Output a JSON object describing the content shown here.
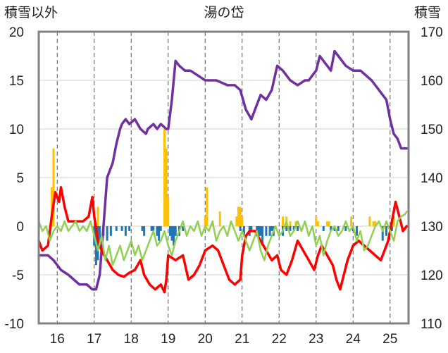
{
  "chart_data": {
    "type": "line",
    "title": "湯の岱",
    "ylabel_left": "積雪以外",
    "ylabel_right": "積雪",
    "ylim_left": [
      -10,
      20
    ],
    "yticks_left": [
      "20",
      "15",
      "10",
      "5",
      "0",
      "-5",
      "-10"
    ],
    "ylim_right": [
      110,
      170
    ],
    "yticks_right": [
      "170",
      "160",
      "150",
      "140",
      "130",
      "120",
      "110"
    ],
    "xlim": [
      15.5,
      25.5
    ],
    "x_tick_labels": [
      "16",
      "17",
      "18",
      "19",
      "20",
      "21",
      "22",
      "23",
      "24",
      "25"
    ],
    "grid": "dashed vertical at each day",
    "series": [
      {
        "axis": "right",
        "color": "#7030A0",
        "kind": "line",
        "x": [
          15.5,
          15.75,
          15.9,
          16.1,
          16.3,
          16.6,
          16.8,
          16.95,
          17.05,
          17.15,
          17.25,
          17.35,
          17.5,
          17.6,
          17.7,
          17.75,
          17.85,
          17.95,
          18.1,
          18.25,
          18.4,
          18.45,
          18.6,
          18.7,
          18.8,
          18.95,
          19.0,
          19.1,
          19.2,
          19.3,
          19.45,
          19.6,
          19.8,
          20.0,
          20.3,
          20.6,
          20.8,
          20.95,
          21.1,
          21.25,
          21.4,
          21.5,
          21.65,
          21.8,
          21.95,
          22.1,
          22.3,
          22.5,
          22.7,
          22.8,
          22.9,
          23.0,
          23.1,
          23.2,
          23.3,
          23.4,
          23.5,
          23.6,
          23.8,
          24.0,
          24.2,
          24.5,
          24.7,
          24.9,
          25.0,
          25.1,
          25.2,
          25.3,
          25.45
        ],
        "values": [
          124,
          124,
          123,
          121,
          120,
          118,
          118,
          117,
          117,
          120,
          130,
          140,
          143,
          147,
          150,
          151,
          152,
          151,
          152,
          150,
          149,
          150,
          151,
          150,
          151,
          150,
          150,
          156,
          164,
          163,
          162,
          162,
          161,
          160,
          160,
          159,
          159,
          158,
          154,
          152,
          155,
          157,
          156,
          158,
          163,
          162,
          160,
          159,
          160,
          160,
          161,
          162,
          165,
          164,
          163,
          162,
          166,
          165,
          163,
          162,
          162,
          160,
          158,
          156,
          152,
          149,
          148,
          146,
          146
        ]
      },
      {
        "axis": "left",
        "color": "#FF0000",
        "kind": "line",
        "x": [
          15.5,
          15.6,
          15.75,
          15.85,
          15.95,
          16.05,
          16.1,
          16.2,
          16.3,
          16.5,
          16.7,
          16.85,
          16.95,
          17.0,
          17.1,
          17.2,
          17.35,
          17.5,
          17.65,
          17.8,
          17.95,
          18.1,
          18.25,
          18.35,
          18.5,
          18.65,
          18.8,
          18.9,
          18.95,
          19.0,
          19.2,
          19.4,
          19.55,
          19.7,
          19.85,
          20.0,
          20.2,
          20.35,
          20.5,
          20.65,
          20.8,
          20.95,
          21.0,
          21.1,
          21.2,
          21.35,
          21.5,
          21.65,
          21.8,
          21.95,
          22.05,
          22.2,
          22.35,
          22.5,
          22.65,
          22.8,
          22.95,
          23.05,
          23.15,
          23.3,
          23.45,
          23.55,
          23.65,
          23.75,
          23.85,
          24.0,
          24.15,
          24.3,
          24.45,
          24.6,
          24.75,
          24.85,
          24.95,
          25.05,
          25.15,
          25.25,
          25.35,
          25.45
        ],
        "values": [
          -1.5,
          -2.5,
          -2.0,
          1.0,
          3.5,
          2.5,
          4.0,
          2.0,
          0.5,
          0.5,
          0.5,
          1.0,
          3.0,
          1.0,
          -1.5,
          -2.5,
          -3.5,
          -4.5,
          -5.0,
          -5.2,
          -4.8,
          -4.5,
          -3.5,
          -5.0,
          -6.0,
          -6.5,
          -6.0,
          -6.8,
          -5.5,
          -3.0,
          -3.5,
          -3.0,
          -5.5,
          -5.0,
          -4.0,
          -2.5,
          -2.0,
          -2.5,
          -4.0,
          -5.5,
          -6.0,
          -5.5,
          -3.0,
          -1.0,
          -0.5,
          -0.5,
          -1.5,
          -2.5,
          -3.5,
          -3.0,
          -4.5,
          -5.0,
          -3.5,
          -1.5,
          -2.5,
          -3.5,
          -4.5,
          -3.0,
          -2.0,
          -3.0,
          -4.0,
          -5.5,
          -6.5,
          -5.0,
          -3.5,
          -2.0,
          -1.5,
          -2.0,
          -2.5,
          -3.0,
          -3.5,
          -2.5,
          -1.5,
          0.5,
          2.5,
          1.0,
          -0.5,
          0.0
        ]
      },
      {
        "axis": "left",
        "color": "#92D050",
        "kind": "line",
        "x": [
          15.5,
          15.6,
          15.7,
          15.8,
          15.9,
          16.0,
          16.1,
          16.2,
          16.3,
          16.4,
          16.5,
          16.6,
          16.7,
          16.8,
          16.9,
          17.0,
          17.1,
          17.2,
          17.3,
          17.4,
          17.5,
          17.6,
          17.7,
          17.8,
          17.9,
          18.0,
          18.1,
          18.2,
          18.3,
          18.4,
          18.5,
          18.6,
          18.7,
          18.8,
          18.9,
          19.0,
          19.1,
          19.2,
          19.3,
          19.4,
          19.5,
          19.6,
          19.7,
          19.8,
          19.9,
          20.0,
          20.1,
          20.2,
          20.3,
          20.4,
          20.5,
          20.6,
          20.7,
          20.8,
          20.9,
          21.0,
          21.1,
          21.2,
          21.3,
          21.4,
          21.5,
          21.6,
          21.7,
          21.8,
          21.9,
          22.0,
          22.1,
          22.2,
          22.3,
          22.4,
          22.5,
          22.6,
          22.7,
          22.8,
          22.9,
          23.0,
          23.1,
          23.2,
          23.3,
          23.4,
          23.5,
          23.6,
          23.7,
          23.8,
          23.9,
          24.0,
          24.1,
          24.2,
          24.3,
          24.4,
          24.5,
          24.6,
          24.7,
          24.8,
          24.9,
          25.0,
          25.1,
          25.2,
          25.3,
          25.4,
          25.45
        ],
        "values": [
          0.5,
          -0.5,
          0.0,
          -1.5,
          -0.5,
          0.0,
          -0.5,
          0.5,
          -0.5,
          0.0,
          0.5,
          -0.5,
          0.0,
          -0.5,
          0.5,
          -1.0,
          -2.5,
          -1.0,
          -3.5,
          -2.0,
          -4.0,
          -3.0,
          -2.0,
          -3.5,
          -2.5,
          -1.5,
          -3.0,
          -2.0,
          -3.5,
          -2.5,
          -1.5,
          -0.5,
          -2.0,
          -1.5,
          -0.5,
          -2.0,
          -3.0,
          -1.5,
          -0.5,
          0.5,
          -1.0,
          0.0,
          -0.5,
          0.5,
          -1.0,
          0.0,
          -0.5,
          0.5,
          -1.5,
          -0.5,
          0.0,
          -1.0,
          0.5,
          -0.5,
          -1.5,
          -0.5,
          -1.5,
          -2.5,
          -1.5,
          -0.5,
          -2.5,
          -3.5,
          -2.0,
          -1.0,
          0.0,
          -1.0,
          -0.5,
          0.5,
          -1.0,
          -0.5,
          0.5,
          -0.5,
          0.5,
          -1.0,
          0.0,
          -2.0,
          -1.0,
          -3.0,
          -1.5,
          -0.5,
          0.0,
          -1.0,
          -0.5,
          0.5,
          -0.5,
          0.0,
          -1.5,
          -0.5,
          -2.5,
          -2.0,
          -1.0,
          0.0,
          0.5,
          -0.5,
          0.5,
          -0.5,
          -1.5,
          0.5,
          1.0,
          1.2,
          1.5
        ]
      },
      {
        "axis": "left",
        "color": "#FFC000",
        "kind": "bar",
        "x": [
          15.85,
          15.9,
          17.1,
          18.9,
          18.95,
          19.0,
          20.0,
          20.05,
          20.2,
          20.4,
          20.85,
          20.9,
          20.95,
          21.0,
          22.1,
          22.2,
          22.3,
          22.45,
          23.0,
          23.05,
          23.3,
          23.35,
          23.95,
          24.45,
          24.55,
          24.6,
          25.1
        ],
        "values": [
          4.0,
          8.0,
          2.0,
          10.0,
          8.0,
          3.0,
          1.0,
          4.0,
          0.5,
          1.5,
          1.0,
          2.0,
          2.0,
          1.0,
          1.0,
          1.0,
          0.5,
          0.5,
          1.0,
          0.5,
          0.5,
          0.5,
          1.0,
          1.0,
          0.5,
          0.5,
          1.0
        ]
      },
      {
        "axis": "left",
        "color": "#1F77B4",
        "kind": "bar",
        "x": [
          17.0,
          17.05,
          17.1,
          17.15,
          17.25,
          17.35,
          17.45,
          17.6,
          17.75,
          17.85,
          17.95,
          18.3,
          18.35,
          18.55,
          18.6,
          18.7,
          18.75,
          18.8,
          19.05,
          19.1,
          19.15,
          19.2,
          19.3,
          19.4,
          20.95,
          21.05,
          21.2,
          21.25,
          21.4,
          21.45,
          21.5,
          21.55,
          21.65,
          21.75,
          21.8,
          21.85,
          22.1,
          22.2,
          22.3,
          22.4,
          22.5,
          23.2,
          23.4,
          23.5,
          23.6,
          23.8,
          24.0,
          24.1,
          24.8,
          24.9,
          25.0,
          25.05
        ],
        "values": [
          -2.0,
          -4.0,
          -3.5,
          -1.5,
          -1.0,
          -1.5,
          -1.0,
          -0.5,
          -0.5,
          -1.0,
          -0.5,
          -0.5,
          -1.0,
          -0.5,
          -0.5,
          -1.0,
          -1.5,
          -0.5,
          -1.0,
          -1.5,
          -2.0,
          -1.0,
          -1.0,
          -0.5,
          -0.5,
          -1.0,
          -1.0,
          -0.5,
          -0.5,
          -1.0,
          -1.0,
          -2.0,
          -1.0,
          -1.0,
          -0.5,
          -1.0,
          -1.0,
          -0.5,
          -0.5,
          -0.5,
          -0.5,
          -0.5,
          -0.5,
          -0.5,
          -0.5,
          -0.5,
          -0.5,
          -1.0,
          -1.5,
          -1.0,
          -0.5,
          -0.5
        ]
      }
    ]
  }
}
